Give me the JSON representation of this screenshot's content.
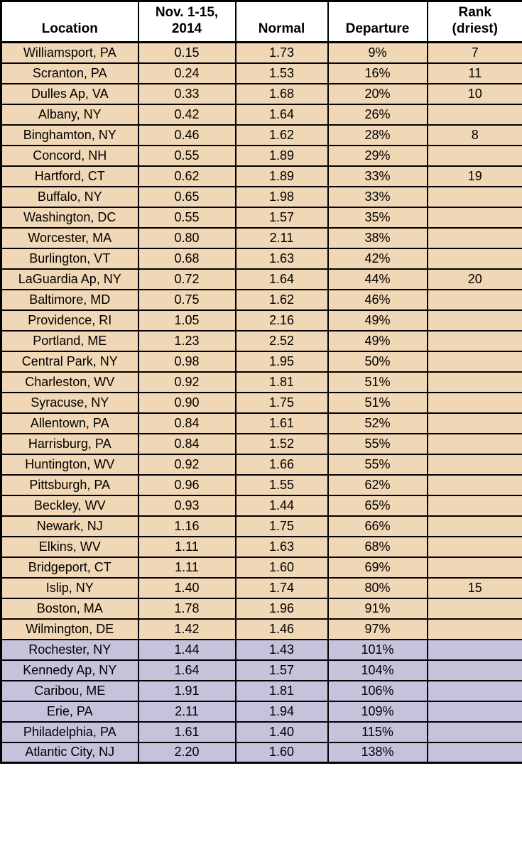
{
  "chart_data": {
    "type": "table",
    "title": "",
    "columns": [
      {
        "key": "location",
        "label": "Location",
        "lines": [
          "Location"
        ]
      },
      {
        "key": "nov_2014",
        "label": "Nov. 1-15, 2014",
        "lines": [
          "Nov. 1-15,",
          "2014"
        ]
      },
      {
        "key": "normal",
        "label": "Normal",
        "lines": [
          "Normal"
        ]
      },
      {
        "key": "departure",
        "label": "Departure",
        "lines": [
          "Departure"
        ]
      },
      {
        "key": "rank",
        "label": "Rank (driest)",
        "lines": [
          "Rank",
          "(driest)"
        ]
      }
    ],
    "highlight_colors": {
      "tan": "#F0D7B5",
      "lavender": "#C7C1DC"
    },
    "header_bg": "#FFFFFF",
    "border_color": "#000000",
    "rows": [
      {
        "location": "Williamsport, PA",
        "nov_2014": "0.15",
        "normal": "1.73",
        "departure": "9%",
        "rank": "7",
        "highlight": "tan"
      },
      {
        "location": "Scranton, PA",
        "nov_2014": "0.24",
        "normal": "1.53",
        "departure": "16%",
        "rank": "11",
        "highlight": "tan"
      },
      {
        "location": "Dulles Ap, VA",
        "nov_2014": "0.33",
        "normal": "1.68",
        "departure": "20%",
        "rank": "10",
        "highlight": "tan"
      },
      {
        "location": "Albany, NY",
        "nov_2014": "0.42",
        "normal": "1.64",
        "departure": "26%",
        "rank": "",
        "highlight": "tan"
      },
      {
        "location": "Binghamton, NY",
        "nov_2014": "0.46",
        "normal": "1.62",
        "departure": "28%",
        "rank": "8",
        "highlight": "tan"
      },
      {
        "location": "Concord, NH",
        "nov_2014": "0.55",
        "normal": "1.89",
        "departure": "29%",
        "rank": "",
        "highlight": "tan"
      },
      {
        "location": "Hartford, CT",
        "nov_2014": "0.62",
        "normal": "1.89",
        "departure": "33%",
        "rank": "19",
        "highlight": "tan"
      },
      {
        "location": "Buffalo, NY",
        "nov_2014": "0.65",
        "normal": "1.98",
        "departure": "33%",
        "rank": "",
        "highlight": "tan"
      },
      {
        "location": "Washington, DC",
        "nov_2014": "0.55",
        "normal": "1.57",
        "departure": "35%",
        "rank": "",
        "highlight": "tan"
      },
      {
        "location": "Worcester, MA",
        "nov_2014": "0.80",
        "normal": "2.11",
        "departure": "38%",
        "rank": "",
        "highlight": "tan"
      },
      {
        "location": "Burlington, VT",
        "nov_2014": "0.68",
        "normal": "1.63",
        "departure": "42%",
        "rank": "",
        "highlight": "tan"
      },
      {
        "location": "LaGuardia Ap, NY",
        "nov_2014": "0.72",
        "normal": "1.64",
        "departure": "44%",
        "rank": "20",
        "highlight": "tan"
      },
      {
        "location": "Baltimore, MD",
        "nov_2014": "0.75",
        "normal": "1.62",
        "departure": "46%",
        "rank": "",
        "highlight": "tan"
      },
      {
        "location": "Providence, RI",
        "nov_2014": "1.05",
        "normal": "2.16",
        "departure": "49%",
        "rank": "",
        "highlight": "tan"
      },
      {
        "location": "Portland, ME",
        "nov_2014": "1.23",
        "normal": "2.52",
        "departure": "49%",
        "rank": "",
        "highlight": "tan"
      },
      {
        "location": "Central Park, NY",
        "nov_2014": "0.98",
        "normal": "1.95",
        "departure": "50%",
        "rank": "",
        "highlight": "tan"
      },
      {
        "location": "Charleston, WV",
        "nov_2014": "0.92",
        "normal": "1.81",
        "departure": "51%",
        "rank": "",
        "highlight": "tan"
      },
      {
        "location": "Syracuse, NY",
        "nov_2014": "0.90",
        "normal": "1.75",
        "departure": "51%",
        "rank": "",
        "highlight": "tan"
      },
      {
        "location": "Allentown, PA",
        "nov_2014": "0.84",
        "normal": "1.61",
        "departure": "52%",
        "rank": "",
        "highlight": "tan"
      },
      {
        "location": "Harrisburg, PA",
        "nov_2014": "0.84",
        "normal": "1.52",
        "departure": "55%",
        "rank": "",
        "highlight": "tan"
      },
      {
        "location": "Huntington, WV",
        "nov_2014": "0.92",
        "normal": "1.66",
        "departure": "55%",
        "rank": "",
        "highlight": "tan"
      },
      {
        "location": "Pittsburgh, PA",
        "nov_2014": "0.96",
        "normal": "1.55",
        "departure": "62%",
        "rank": "",
        "highlight": "tan"
      },
      {
        "location": "Beckley, WV",
        "nov_2014": "0.93",
        "normal": "1.44",
        "departure": "65%",
        "rank": "",
        "highlight": "tan"
      },
      {
        "location": "Newark, NJ",
        "nov_2014": "1.16",
        "normal": "1.75",
        "departure": "66%",
        "rank": "",
        "highlight": "tan"
      },
      {
        "location": "Elkins, WV",
        "nov_2014": "1.11",
        "normal": "1.63",
        "departure": "68%",
        "rank": "",
        "highlight": "tan"
      },
      {
        "location": "Bridgeport, CT",
        "nov_2014": "1.11",
        "normal": "1.60",
        "departure": "69%",
        "rank": "",
        "highlight": "tan"
      },
      {
        "location": "Islip, NY",
        "nov_2014": "1.40",
        "normal": "1.74",
        "departure": "80%",
        "rank": "15",
        "highlight": "tan"
      },
      {
        "location": "Boston, MA",
        "nov_2014": "1.78",
        "normal": "1.96",
        "departure": "91%",
        "rank": "",
        "highlight": "tan"
      },
      {
        "location": "Wilmington, DE",
        "nov_2014": "1.42",
        "normal": "1.46",
        "departure": "97%",
        "rank": "",
        "highlight": "tan"
      },
      {
        "location": "Rochester, NY",
        "nov_2014": "1.44",
        "normal": "1.43",
        "departure": "101%",
        "rank": "",
        "highlight": "lavender"
      },
      {
        "location": "Kennedy Ap, NY",
        "nov_2014": "1.64",
        "normal": "1.57",
        "departure": "104%",
        "rank": "",
        "highlight": "lavender"
      },
      {
        "location": "Caribou, ME",
        "nov_2014": "1.91",
        "normal": "1.81",
        "departure": "106%",
        "rank": "",
        "highlight": "lavender"
      },
      {
        "location": "Erie, PA",
        "nov_2014": "2.11",
        "normal": "1.94",
        "departure": "109%",
        "rank": "",
        "highlight": "lavender"
      },
      {
        "location": "Philadelphia, PA",
        "nov_2014": "1.61",
        "normal": "1.40",
        "departure": "115%",
        "rank": "",
        "highlight": "lavender"
      },
      {
        "location": "Atlantic City, NJ",
        "nov_2014": "2.20",
        "normal": "1.60",
        "departure": "138%",
        "rank": "",
        "highlight": "lavender"
      }
    ]
  }
}
